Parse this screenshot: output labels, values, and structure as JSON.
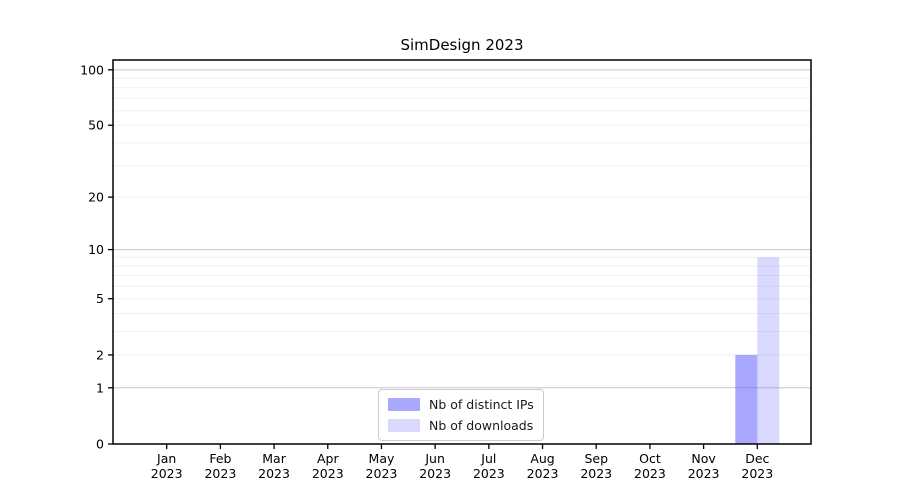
{
  "chart_data": {
    "type": "bar",
    "title": "SimDesign 2023",
    "xlabel": "",
    "ylabel": "",
    "x_ticks": [
      {
        "label": "Jan",
        "sublabel": "2023"
      },
      {
        "label": "Feb",
        "sublabel": "2023"
      },
      {
        "label": "Mar",
        "sublabel": "2023"
      },
      {
        "label": "Apr",
        "sublabel": "2023"
      },
      {
        "label": "May",
        "sublabel": "2023"
      },
      {
        "label": "Jun",
        "sublabel": "2023"
      },
      {
        "label": "Jul",
        "sublabel": "2023"
      },
      {
        "label": "Aug",
        "sublabel": "2023"
      },
      {
        "label": "Sep",
        "sublabel": "2023"
      },
      {
        "label": "Oct",
        "sublabel": "2023"
      },
      {
        "label": "Nov",
        "sublabel": "2023"
      },
      {
        "label": "Dec",
        "sublabel": "2023"
      }
    ],
    "series": [
      {
        "name": "Nb of distinct IPs",
        "color": "#6666ff",
        "opacity": 0.57,
        "values": [
          0,
          0,
          0,
          0,
          0,
          0,
          0,
          0,
          0,
          0,
          0,
          2
        ]
      },
      {
        "name": "Nb of downloads",
        "color": "#6666ff",
        "opacity": 0.25,
        "values": [
          0,
          0,
          0,
          0,
          0,
          0,
          0,
          0,
          0,
          0,
          0,
          9
        ]
      }
    ],
    "y_scale": "log1p",
    "y_ticks": [
      0,
      1,
      2,
      5,
      10,
      20,
      50,
      100
    ],
    "y_minor_gridlines": [
      3,
      4,
      6,
      7,
      8,
      9,
      30,
      40,
      60,
      70,
      80,
      90
    ],
    "y_major_gridlines": [
      1,
      10,
      100
    ],
    "ylim": [
      0,
      113
    ],
    "grid": "on",
    "legend_position": "lower center",
    "colors": {
      "grid_major": "#c6c6c6",
      "grid_minor": "#efefef",
      "axis": "#000000",
      "tick_label": "#000000"
    }
  }
}
